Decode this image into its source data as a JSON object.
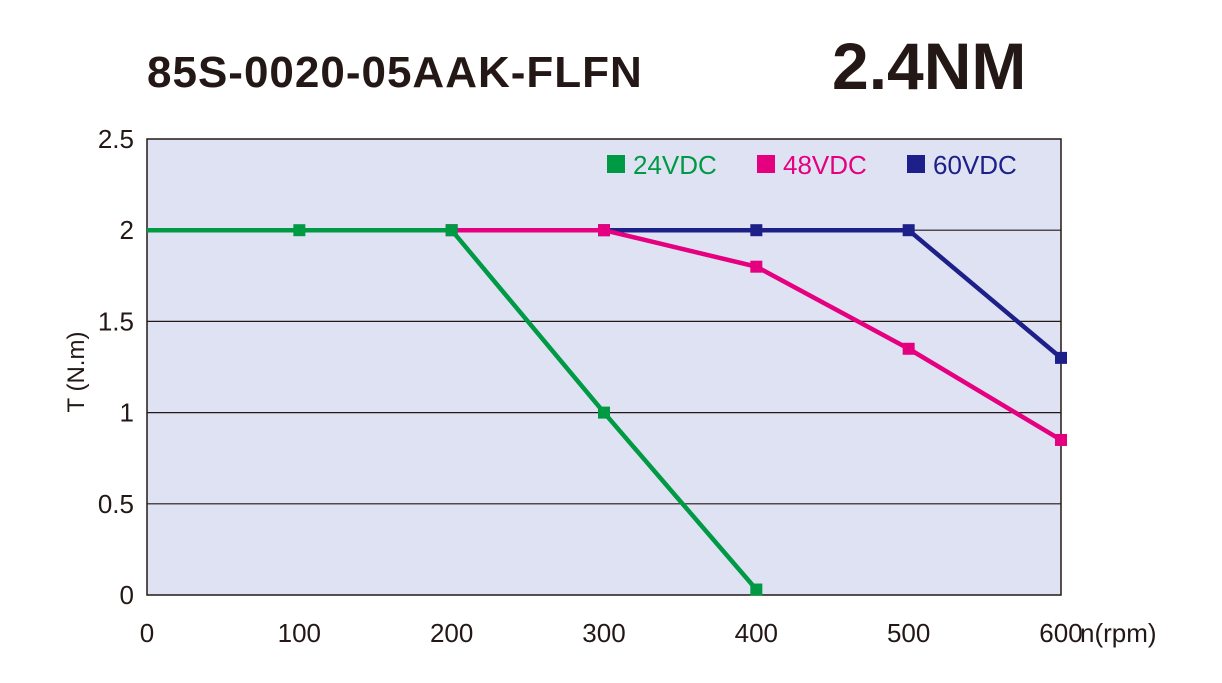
{
  "title": "85S-0020-05AAK-FLFN",
  "torque_label": "2.4NM",
  "chart_data": {
    "type": "line",
    "title": "85S-0020-05AAK-FLFN 2.4NM",
    "xlabel": "n(rpm)",
    "ylabel": "T (N.m)",
    "xlim": [
      0,
      600
    ],
    "ylim": [
      0,
      2.5
    ],
    "xticks": [
      0,
      100,
      200,
      300,
      400,
      500,
      600
    ],
    "yticks": [
      0,
      0.5,
      1,
      1.5,
      2,
      2.5
    ],
    "xtick_labels": [
      "0",
      "100",
      "200",
      "300",
      "400",
      "500",
      "600"
    ],
    "ytick_labels": [
      "0",
      "0.5",
      "1",
      "1.5",
      "2",
      "2.5"
    ],
    "grid": "horizontal",
    "background": "#dfe2f3",
    "legend_position": "top-right",
    "series": [
      {
        "name": "60VDC",
        "color": "#1d2088",
        "x": [
          300,
          400,
          500,
          600
        ],
        "y": [
          2,
          2,
          2,
          1.3
        ]
      },
      {
        "name": "48VDC",
        "color": "#e4007f",
        "x": [
          200,
          300,
          400,
          500,
          600
        ],
        "y": [
          2,
          2,
          1.8,
          1.35,
          0.85
        ]
      },
      {
        "name": "24VDC",
        "color": "#009944",
        "x": [
          0,
          100,
          200,
          300,
          400
        ],
        "y": [
          2,
          2,
          2,
          1,
          0.03
        ]
      }
    ],
    "legend_order": [
      "24VDC",
      "48VDC",
      "60VDC"
    ]
  }
}
